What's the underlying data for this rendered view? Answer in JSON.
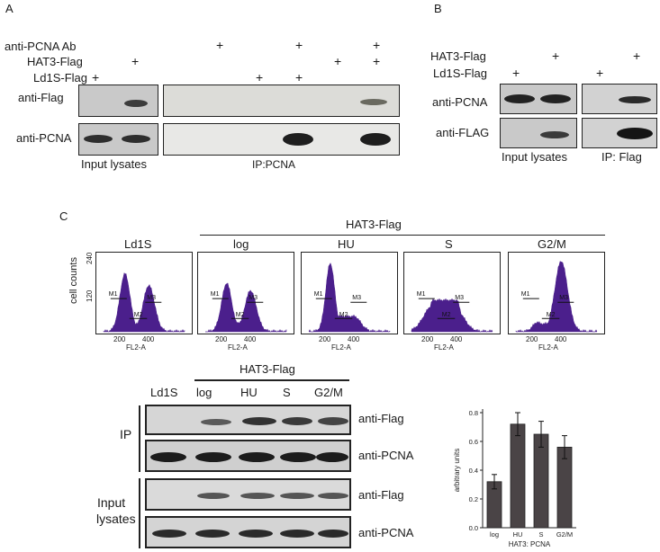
{
  "panel_a": {
    "letter": "A",
    "row_labels": {
      "antibody": "anti-PCNA Ab",
      "hat3": "HAT3-Flag",
      "ld1s": "Ld1S-Flag"
    },
    "plus": "+",
    "blot_labels": {
      "flag": "anti-Flag",
      "pcna": "anti-PCNA"
    },
    "input_caption": "Input lysates",
    "ip_caption": "IP:PCNA"
  },
  "panel_b": {
    "letter": "B",
    "row_labels": {
      "hat3": "HAT3-Flag",
      "ld1s": "Ld1S-Flag"
    },
    "plus": "+",
    "blot_labels": {
      "pcna": "anti-PCNA",
      "flag": "anti-FLAG"
    },
    "input_caption": "Input lysates",
    "ip_caption": "IP: Flag"
  },
  "panel_c": {
    "letter": "C",
    "group_label": "HAT3-Flag",
    "y_label": "cell counts",
    "y_ticks": [
      "240",
      "120"
    ],
    "x_ticks": [
      "200",
      "400"
    ],
    "x_label": "FL2-A",
    "markers": [
      "M1",
      "M2",
      "M3"
    ],
    "histograms": [
      "Ld1S",
      "log",
      "HU",
      "S",
      "G2/M"
    ],
    "blot": {
      "group_label": "HAT3-Flag",
      "lanes": [
        "Ld1S",
        "log",
        "HU",
        "S",
        "G2/M"
      ],
      "ip_label": "IP",
      "input_label_line1": "Input",
      "input_label_line2": "lysates",
      "blot_labels": {
        "flag1": "anti-Flag",
        "pcna1": "anti-PCNA",
        "flag2": "anti-Flag",
        "pcna2": "anti-PCNA"
      }
    }
  },
  "chart_data": {
    "type": "bar",
    "categories": [
      "log",
      "HU",
      "S",
      "G2/M"
    ],
    "values": [
      0.32,
      0.72,
      0.65,
      0.56
    ],
    "errors": [
      0.05,
      0.08,
      0.09,
      0.08
    ],
    "ylabel": "arbitrary units",
    "xlabel": "HAT3: PCNA",
    "ylim": [
      0,
      0.8
    ],
    "yticks": [
      "0.0",
      "0.2",
      "0.4",
      "0.6",
      "0.8"
    ],
    "bar_color": "#4a4446"
  },
  "colors": {
    "histogram_fill": "#4b1f8c",
    "band": "#333333"
  }
}
